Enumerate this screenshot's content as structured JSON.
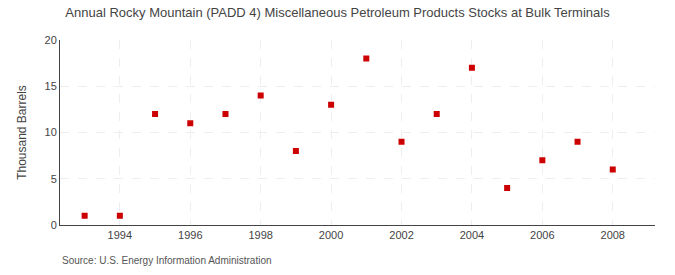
{
  "chart_data": {
    "type": "scatter",
    "title": "Annual Rocky Mountain (PADD 4) Miscellaneous Petroleum Products Stocks at Bulk Terminals",
    "ylabel": "Thousand Barrels",
    "annotations": [
      "Source: U.S. Energy Information Administration"
    ],
    "x": [
      1993,
      1994,
      1995,
      1996,
      1997,
      1998,
      1999,
      2000,
      2001,
      2002,
      2003,
      2004,
      2005,
      2006,
      2007,
      2008
    ],
    "values": [
      1,
      1,
      12,
      11,
      12,
      14,
      8,
      13,
      18,
      9,
      12,
      17,
      4,
      7,
      9,
      6
    ],
    "xlim": [
      1992.3,
      2009.2
    ],
    "xticks": [
      1994,
      1996,
      1998,
      2000,
      2002,
      2004,
      2006,
      2008
    ],
    "ylim": [
      0,
      20
    ],
    "yticks": [
      0,
      5,
      10,
      15,
      20
    ],
    "color": "#cc0000",
    "marker": "square",
    "grid": true
  }
}
